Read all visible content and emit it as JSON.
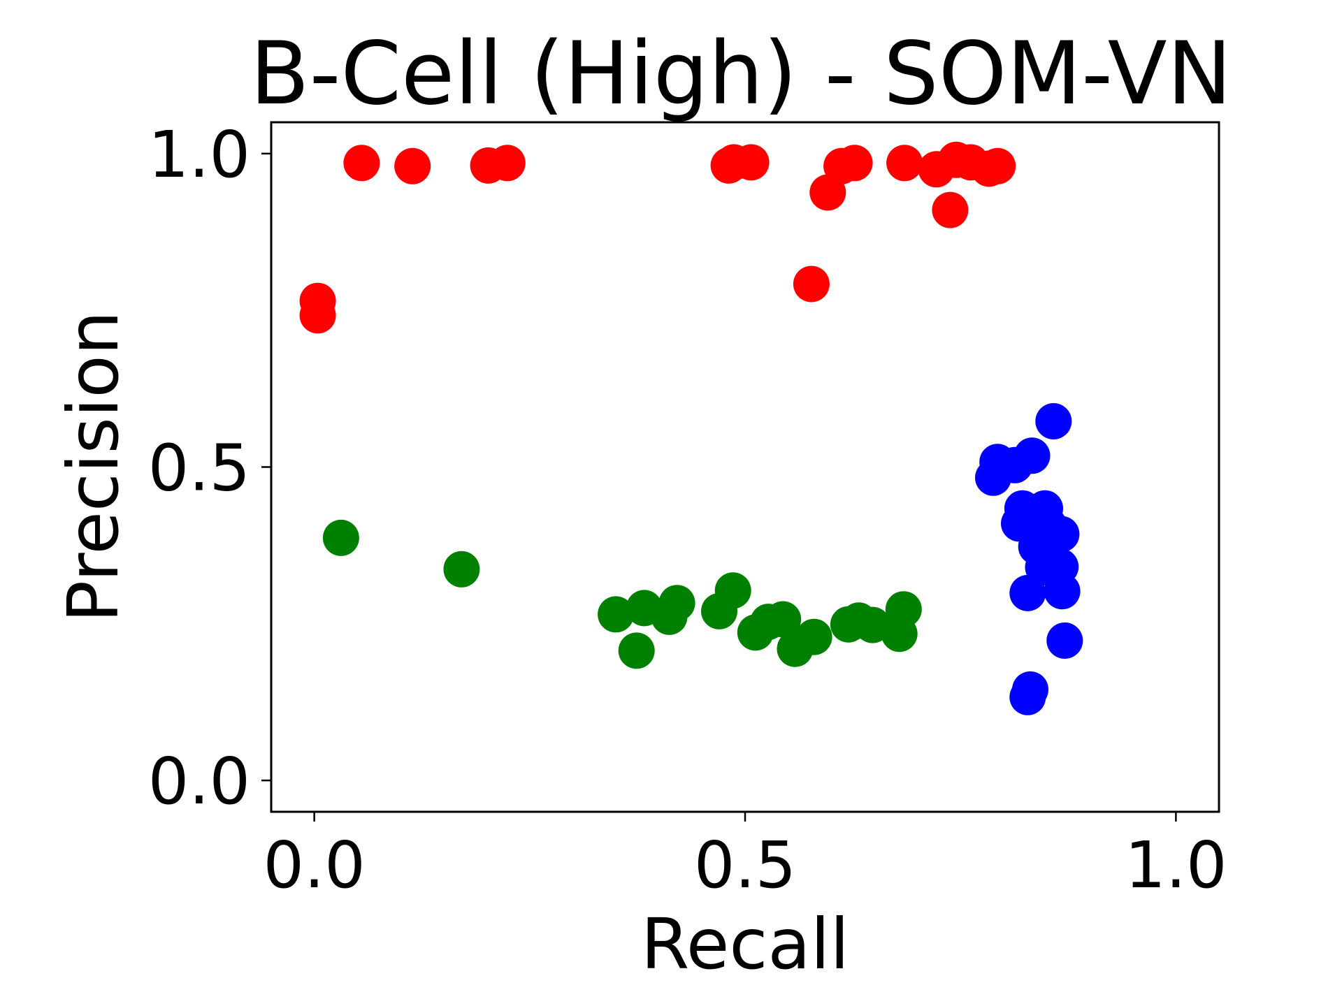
{
  "chart_data": {
    "type": "scatter",
    "title": "B-Cell (High) - SOM-VN",
    "xlabel": "Recall",
    "ylabel": "Precision",
    "xlim": [
      -0.05,
      1.05
    ],
    "ylim": [
      -0.05,
      1.05
    ],
    "xticks": [
      0.0,
      0.5,
      1.0
    ],
    "xtick_labels": [
      "0.0",
      "0.5",
      "1.0"
    ],
    "yticks": [
      0.0,
      0.5,
      1.0
    ],
    "ytick_labels": [
      "0.0",
      "0.5",
      "1.0"
    ],
    "grid": false,
    "series": [
      {
        "color": "#ff0000",
        "points": [
          [
            0.004,
            0.765
          ],
          [
            0.004,
            0.742
          ],
          [
            0.055,
            0.985
          ],
          [
            0.114,
            0.98
          ],
          [
            0.202,
            0.981
          ],
          [
            0.224,
            0.985
          ],
          [
            0.481,
            0.981
          ],
          [
            0.487,
            0.986
          ],
          [
            0.507,
            0.986
          ],
          [
            0.577,
            0.792
          ],
          [
            0.596,
            0.938
          ],
          [
            0.612,
            0.98
          ],
          [
            0.627,
            0.985
          ],
          [
            0.685,
            0.985
          ],
          [
            0.722,
            0.975
          ],
          [
            0.738,
            0.91
          ],
          [
            0.745,
            0.99
          ],
          [
            0.762,
            0.986
          ],
          [
            0.783,
            0.976
          ],
          [
            0.793,
            0.98
          ]
        ]
      },
      {
        "color": "#008000",
        "points": [
          [
            0.031,
            0.387
          ],
          [
            0.171,
            0.337
          ],
          [
            0.35,
            0.265
          ],
          [
            0.383,
            0.275
          ],
          [
            0.374,
            0.207
          ],
          [
            0.412,
            0.261
          ],
          [
            0.421,
            0.283
          ],
          [
            0.47,
            0.27
          ],
          [
            0.486,
            0.303
          ],
          [
            0.512,
            0.236
          ],
          [
            0.527,
            0.253
          ],
          [
            0.544,
            0.257
          ],
          [
            0.558,
            0.21
          ],
          [
            0.58,
            0.229
          ],
          [
            0.62,
            0.249
          ],
          [
            0.632,
            0.255
          ],
          [
            0.648,
            0.248
          ],
          [
            0.679,
            0.234
          ],
          [
            0.684,
            0.273
          ]
        ]
      },
      {
        "color": "#0000ff",
        "points": [
          [
            0.788,
            0.483
          ],
          [
            0.793,
            0.508
          ],
          [
            0.813,
            0.503
          ],
          [
            0.833,
            0.518
          ],
          [
            0.822,
            0.434
          ],
          [
            0.818,
            0.41
          ],
          [
            0.832,
            0.408
          ],
          [
            0.838,
            0.373
          ],
          [
            0.848,
            0.434
          ],
          [
            0.852,
            0.408
          ],
          [
            0.846,
            0.34
          ],
          [
            0.858,
            0.573
          ],
          [
            0.867,
            0.393
          ],
          [
            0.866,
            0.341
          ],
          [
            0.868,
            0.302
          ],
          [
            0.871,
            0.223
          ],
          [
            0.828,
            0.299
          ],
          [
            0.828,
            0.133
          ],
          [
            0.831,
            0.145
          ]
        ]
      }
    ]
  }
}
